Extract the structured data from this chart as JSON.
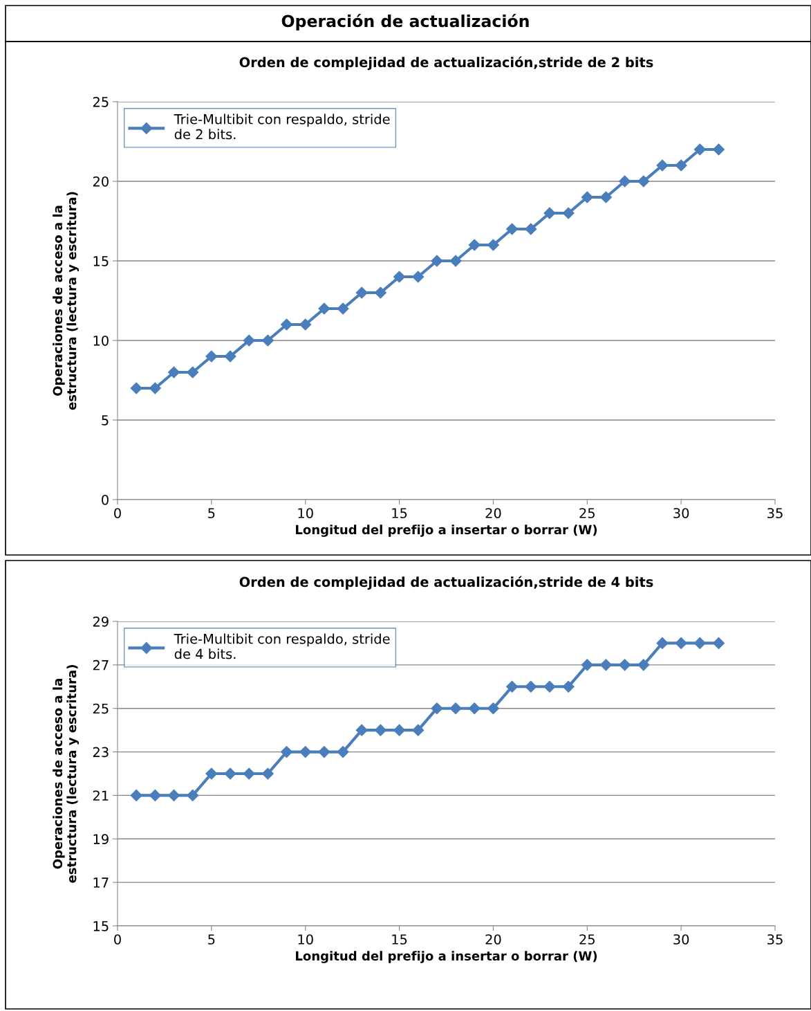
{
  "chart_data": [
    {
      "type": "line",
      "title": "Operación de actualización",
      "subtitle": "Orden de complejidad de actualización,stride de 2 bits",
      "xlabel": "Longitud del prefijo a insertar o borrar (W)",
      "ylabel": "Operaciones de acceso a la estructura (lectura y escritura)",
      "x": [
        1,
        2,
        3,
        4,
        5,
        6,
        7,
        8,
        9,
        10,
        11,
        12,
        13,
        14,
        15,
        16,
        17,
        18,
        19,
        20,
        21,
        22,
        23,
        24,
        25,
        26,
        27,
        28,
        29,
        30,
        31,
        32
      ],
      "series": [
        {
          "name": "Trie-Multibit con respaldo, stride de 2 bits.",
          "color": "#4a7ebb",
          "values": [
            7,
            7,
            8,
            8,
            9,
            9,
            10,
            10,
            11,
            11,
            12,
            12,
            13,
            13,
            14,
            14,
            15,
            15,
            16,
            16,
            17,
            17,
            18,
            18,
            19,
            19,
            20,
            20,
            21,
            21,
            22,
            22
          ]
        }
      ],
      "xlim": [
        0,
        35
      ],
      "xticks": [
        0,
        5,
        10,
        15,
        20,
        25,
        30,
        35
      ],
      "ylim": [
        0,
        25
      ],
      "yticks": [
        0,
        5,
        10,
        15,
        20,
        25
      ],
      "grid": "y",
      "legend": "top left",
      "marker": "diamond",
      "line_style": "solid"
    },
    {
      "type": "line",
      "title": "Orden de complejidad de actualización,stride de 4 bits",
      "xlabel": "Longitud del prefijo a insertar o borrar (W)",
      "ylabel": "Operaciones de acceso a la estructura (lectura y escritura)",
      "x": [
        1,
        2,
        3,
        4,
        5,
        6,
        7,
        8,
        9,
        10,
        11,
        12,
        13,
        14,
        15,
        16,
        17,
        18,
        19,
        20,
        21,
        22,
        23,
        24,
        25,
        26,
        27,
        28,
        29,
        30,
        31,
        32
      ],
      "series": [
        {
          "name": "Trie-Multibit con respaldo, stride de 4 bits.",
          "color": "#4a7ebb",
          "values": [
            21,
            21,
            21,
            21,
            22,
            22,
            22,
            22,
            23,
            23,
            23,
            23,
            24,
            24,
            24,
            24,
            25,
            25,
            25,
            25,
            26,
            26,
            26,
            26,
            27,
            27,
            27,
            27,
            28,
            28,
            28,
            28
          ]
        }
      ],
      "xlim": [
        0,
        35
      ],
      "xticks": [
        0,
        5,
        10,
        15,
        20,
        25,
        30,
        35
      ],
      "ylim": [
        15,
        29
      ],
      "yticks": [
        15,
        17,
        19,
        21,
        23,
        25,
        27,
        29
      ],
      "grid": "y",
      "legend": "top left",
      "marker": "diamond",
      "line_style": "solid"
    }
  ]
}
